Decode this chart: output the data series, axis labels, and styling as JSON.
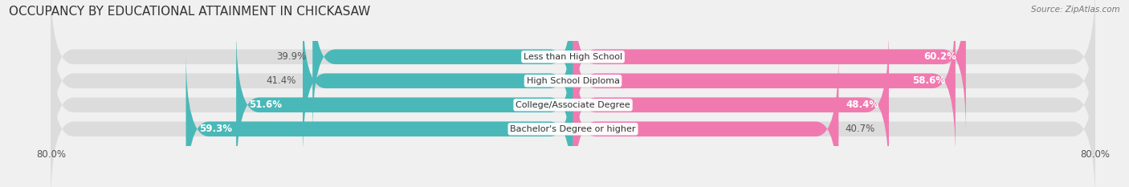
{
  "title": "OCCUPANCY BY EDUCATIONAL ATTAINMENT IN CHICKASAW",
  "source": "Source: ZipAtlas.com",
  "categories": [
    "Less than High School",
    "High School Diploma",
    "College/Associate Degree",
    "Bachelor's Degree or higher"
  ],
  "owner_pct": [
    39.9,
    41.4,
    51.6,
    59.3
  ],
  "renter_pct": [
    60.2,
    58.6,
    48.4,
    40.7
  ],
  "owner_color": "#4ab8b8",
  "renter_color": "#f07ab0",
  "owner_label_color_inside": "#ffffff",
  "owner_label_color_outside": "#555555",
  "renter_label_color_inside": "#ffffff",
  "renter_label_color_outside": "#555555",
  "owner_inside_threshold": 45.0,
  "renter_inside_threshold": 45.0,
  "bar_height": 0.62,
  "xlim_left": -80.0,
  "xlim_right": 80.0,
  "background_color": "#f0f0f0",
  "bar_bg_color": "#dcdcdc",
  "title_fontsize": 11,
  "label_fontsize": 8.5,
  "tick_fontsize": 8.5,
  "legend_fontsize": 9,
  "row_bg_color": "#e8e8e8"
}
